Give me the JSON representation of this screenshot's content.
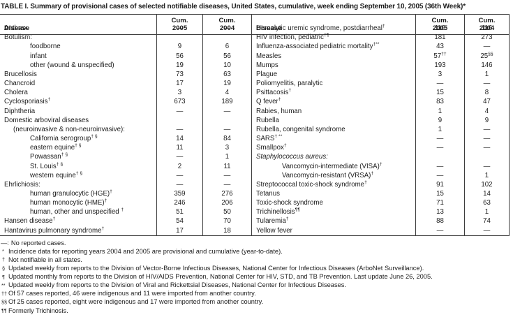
{
  "title": "TABLE I. Summary of provisional cases of selected notifiable diseases, United States, cumulative, week ending September 10, 2005 (36th Week)*",
  "colors": {
    "text": "#1c1c1c",
    "border": "#3d3d3d",
    "background": "#ffffff"
  },
  "header": {
    "disease": "Disease",
    "cum": "Cum.",
    "y2005": "2005",
    "y2004": "2004"
  },
  "no_cases_symbol": "—",
  "left_rows": [
    {
      "label": "Anthrax",
      "v2005": "—",
      "v2004": "—"
    },
    {
      "label": "Botulism:",
      "v2005": "",
      "v2004": ""
    },
    {
      "label": "foodborne",
      "indent": 2,
      "v2005": "9",
      "v2004": "6"
    },
    {
      "label": "infant",
      "indent": 2,
      "v2005": "56",
      "v2004": "56"
    },
    {
      "label": "other (wound & unspecified)",
      "indent": 2,
      "v2005": "19",
      "v2004": "10"
    },
    {
      "label": "Brucellosis",
      "v2005": "73",
      "v2004": "63"
    },
    {
      "label": "Chancroid",
      "v2005": "17",
      "v2004": "19"
    },
    {
      "label": "Cholera",
      "v2005": "3",
      "v2004": "4"
    },
    {
      "label": "Cyclosporiasis",
      "sup": "†",
      "v2005": "673",
      "v2004": "189"
    },
    {
      "label": "Diphtheria",
      "v2005": "—",
      "v2004": "—"
    },
    {
      "label": "Domestic arboviral diseases",
      "v2005": "",
      "v2004": ""
    },
    {
      "label": "(neuroinvasive & non-neuroinvasive):",
      "indent": 1,
      "v2005": "—",
      "v2004": "—"
    },
    {
      "label": "California serogroup",
      "sup": "† §",
      "indent": 2,
      "v2005": "14",
      "v2004": "84"
    },
    {
      "label": "eastern equine",
      "sup": "† §",
      "indent": 2,
      "v2005": "11",
      "v2004": "3"
    },
    {
      "label": "Powassan",
      "sup": "† §",
      "indent": 2,
      "v2005": "—",
      "v2004": "1"
    },
    {
      "label": "St. Louis",
      "sup": "† §",
      "indent": 2,
      "v2005": "2",
      "v2004": "11"
    },
    {
      "label": "western equine",
      "sup": "† §",
      "indent": 2,
      "v2005": "—",
      "v2004": "—"
    },
    {
      "label": "Ehrlichiosis:",
      "v2005": "—",
      "v2004": "—"
    },
    {
      "label": "human granulocytic (HGE)",
      "sup": "†",
      "indent": 2,
      "v2005": "359",
      "v2004": "276"
    },
    {
      "label": "human monocytic (HME)",
      "sup": "†",
      "indent": 2,
      "v2005": "246",
      "v2004": "206"
    },
    {
      "label": "human, other and unspecified ",
      "sup": "†",
      "indent": 2,
      "v2005": "51",
      "v2004": "50"
    },
    {
      "label": "Hansen disease",
      "sup": "†",
      "v2005": "54",
      "v2004": "70"
    },
    {
      "label": "Hantavirus pulmonary syndrome",
      "sup": "†",
      "v2005": "17",
      "v2004": "18"
    }
  ],
  "right_rows": [
    {
      "label": "Hemolytic uremic syndrome, postdiarrheal",
      "sup": "†",
      "v2005": "110",
      "v2004": "116"
    },
    {
      "label": "HIV infection, pediatric",
      "sup": "†¶",
      "v2005": "181",
      "v2004": "273"
    },
    {
      "label": "Influenza-associated pediatric mortality",
      "sup": "†**",
      "v2005": "43",
      "v2004": "—"
    },
    {
      "label": "Measles",
      "v2005": "57",
      "v2005_sup": "††",
      "v2004": "25",
      "v2004_sup": "§§"
    },
    {
      "label": "Mumps",
      "v2005": "193",
      "v2004": "146"
    },
    {
      "label": "Plague",
      "v2005": "3",
      "v2004": "1"
    },
    {
      "label": "Poliomyelitis, paralytic",
      "v2005": "—",
      "v2004": "—"
    },
    {
      "label": "Psittacosis",
      "sup": "†",
      "v2005": "15",
      "v2004": "8"
    },
    {
      "label": "Q fever",
      "sup": "†",
      "v2005": "83",
      "v2004": "47"
    },
    {
      "label": "Rabies, human",
      "v2005": "1",
      "v2004": "4"
    },
    {
      "label": "Rubella",
      "v2005": "9",
      "v2004": "9"
    },
    {
      "label": "Rubella, congenital syndrome",
      "v2005": "1",
      "v2004": "—"
    },
    {
      "label": "SARS",
      "sup": "† **",
      "v2005": "—",
      "v2004": "—"
    },
    {
      "label": "Smallpox",
      "sup": "†",
      "v2005": "—",
      "v2004": "—"
    },
    {
      "label": "Staphylococcus aureus:",
      "italic": true,
      "v2005": "",
      "v2004": ""
    },
    {
      "label": "Vancomycin-intermediate (VISA)",
      "sup": "†",
      "indent": 2,
      "v2005": "—",
      "v2004": "—"
    },
    {
      "label": "Vancomycin-resistant (VRSA)",
      "sup": "†",
      "indent": 2,
      "v2005": "—",
      "v2004": "1"
    },
    {
      "label": "Streptococcal toxic-shock syndrome",
      "sup": "†",
      "v2005": "91",
      "v2004": "102"
    },
    {
      "label": "Tetanus",
      "v2005": "15",
      "v2004": "14"
    },
    {
      "label": "Toxic-shock syndrome",
      "v2005": "71",
      "v2004": "63"
    },
    {
      "label": "Trichinellosis",
      "sup": "¶¶",
      "v2005": "13",
      "v2004": "1"
    },
    {
      "label": "Tularemia",
      "sup": "†",
      "v2005": "88",
      "v2004": "74"
    },
    {
      "label": "Yellow fever",
      "v2005": "—",
      "v2004": "—"
    }
  ],
  "footnotes": [
    {
      "marker": "—:",
      "sup": false,
      "text": "No reported cases."
    },
    {
      "marker": "*",
      "sup": true,
      "text": "Incidence data for reporting years 2004 and 2005 are provisional and cumulative (year-to-date)."
    },
    {
      "marker": "†",
      "sup": true,
      "text": "Not notifiable in all states."
    },
    {
      "marker": "§",
      "sup": true,
      "text": "Updated weekly from reports to the Division of Vector-Borne Infectious Diseases, National Center for Infectious Diseases (ArboNet Surveillance)."
    },
    {
      "marker": "¶",
      "sup": true,
      "text": "Updated monthly from reports to the Division of HIV/AIDS Prevention, National Center for HIV, STD, and TB Prevention. Last update June 26, 2005."
    },
    {
      "marker": "**",
      "sup": true,
      "text": "Updated weekly from reports to the Division of Viral and Rickettsial Diseases, National Center for Infectious Diseases."
    },
    {
      "marker": "††",
      "sup": true,
      "text": "Of 57 cases reported, 46 were indigenous and 11 were imported from another country."
    },
    {
      "marker": "§§",
      "sup": true,
      "text": "Of 25 cases reported, eight were indigenous and 17 were imported from another country."
    },
    {
      "marker": "¶¶",
      "sup": true,
      "text": "Formerly Trichinosis."
    }
  ]
}
